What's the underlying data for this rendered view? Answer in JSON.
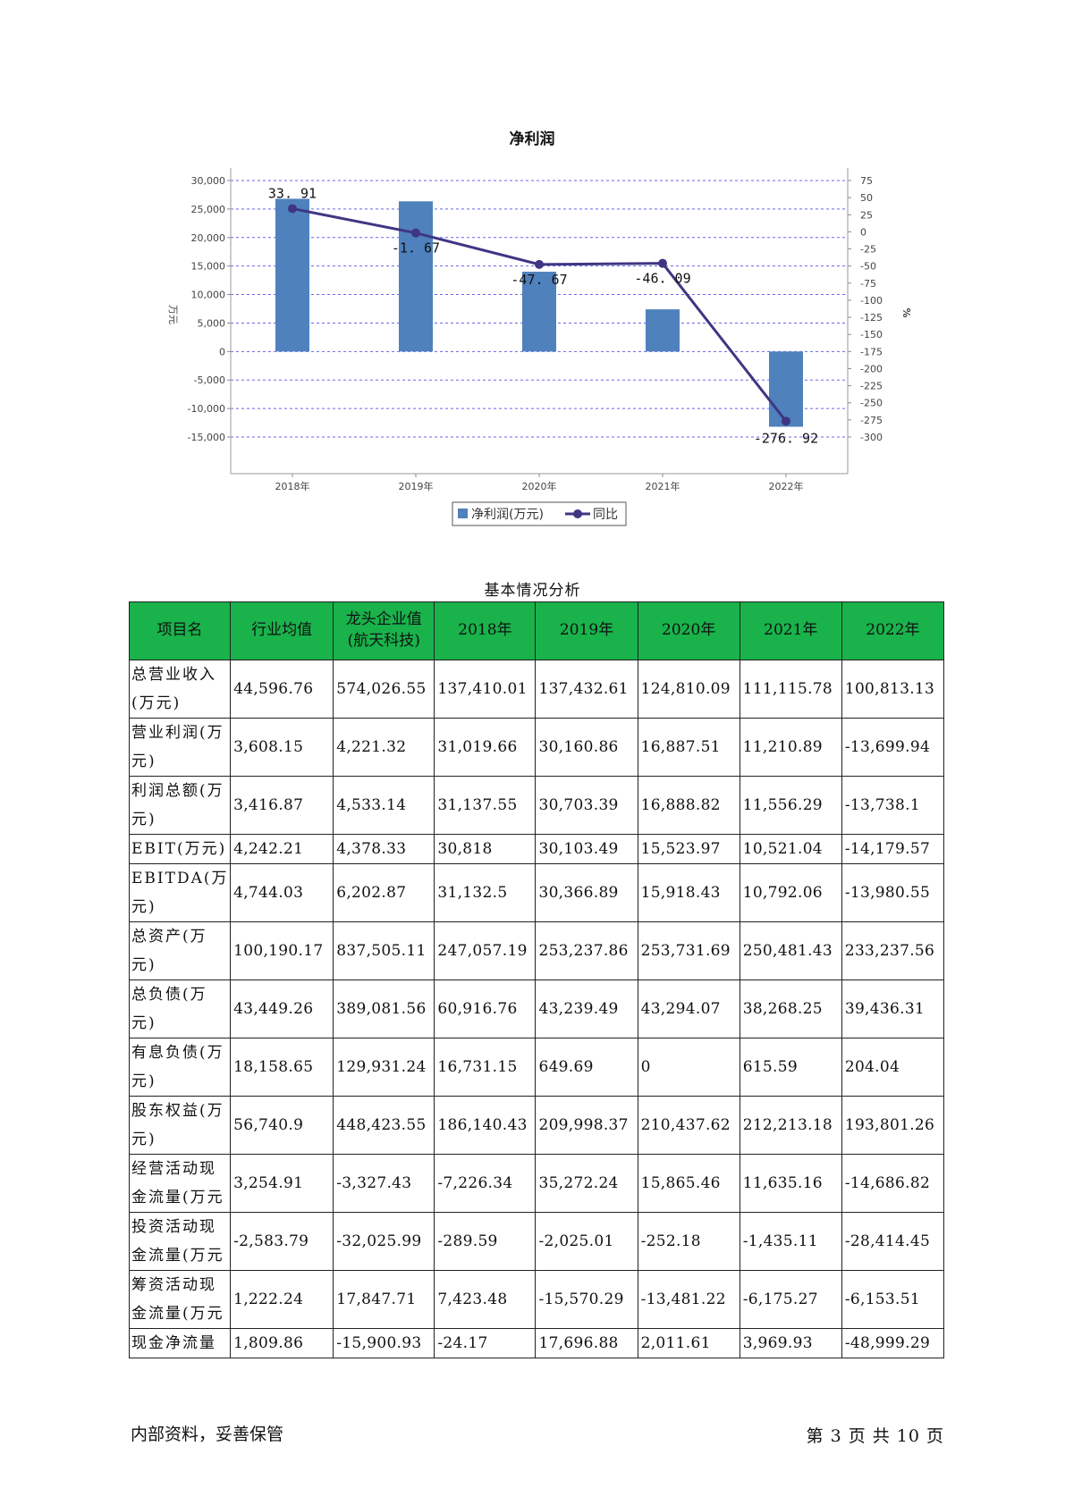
{
  "chart_data": {
    "type": "bar",
    "title": "净利润",
    "categories": [
      "2018年",
      "2019年",
      "2020年",
      "2021年",
      "2022年"
    ],
    "series": [
      {
        "name": "净利润(万元)",
        "type": "bar",
        "axis": "left",
        "values": [
          26800,
          26350,
          14000,
          7400,
          -13200
        ]
      },
      {
        "name": "同比",
        "type": "line",
        "axis": "right",
        "values": [
          33.91,
          -1.67,
          -47.67,
          -46.09,
          -276.92
        ]
      }
    ],
    "ylabel": "万元",
    "ylim": [
      -15000,
      30000
    ],
    "yticks": [
      "30,000",
      "25,000",
      "20,000",
      "15,000",
      "10,000",
      "5,000",
      "0",
      "-5,000",
      "-10,000",
      "-15,000"
    ],
    "ylabel_right": "%",
    "ylim_right": [
      -300,
      75
    ],
    "yticks_right": [
      "75",
      "50",
      "25",
      "0",
      "-25",
      "-50",
      "-75",
      "-100",
      "-125",
      "-150",
      "-175",
      "-200",
      "-225",
      "-250",
      "-275",
      "-300"
    ],
    "data_labels": [
      "33. 91",
      "-1. 67",
      "-47. 67",
      "-46. 09",
      "-276. 92"
    ],
    "legend": "bottom",
    "grid": true,
    "colors": {
      "bar": "#4f81bd",
      "line": "#3f3683",
      "grid": "#6666ee"
    }
  },
  "table": {
    "title": "基本情况分析",
    "header_color": "#19b24b",
    "headers": [
      "项目名",
      "行业均值",
      "龙头企业值(航天科技)",
      "2018年",
      "2019年",
      "2020年",
      "2021年",
      "2022年"
    ],
    "rows": [
      [
        "总营业收入(万元)",
        "44,596.76",
        "574,026.55",
        "137,410.01",
        "137,432.61",
        "124,810.09",
        "111,115.78",
        "100,813.13"
      ],
      [
        "营业利润(万元)",
        "3,608.15",
        "4,221.32",
        "31,019.66",
        "30,160.86",
        "16,887.51",
        "11,210.89",
        "-13,699.94"
      ],
      [
        "利润总额(万元)",
        "3,416.87",
        "4,533.14",
        "31,137.55",
        "30,703.39",
        "16,888.82",
        "11,556.29",
        "-13,738.1"
      ],
      [
        "EBIT(万元)",
        "4,242.21",
        "4,378.33",
        "30,818",
        "30,103.49",
        "15,523.97",
        "10,521.04",
        "-14,179.57"
      ],
      [
        "EBITDA(万元)",
        "4,744.03",
        "6,202.87",
        "31,132.5",
        "30,366.89",
        "15,918.43",
        "10,792.06",
        "-13,980.55"
      ],
      [
        "总资产(万元)",
        "100,190.17",
        "837,505.11",
        "247,057.19",
        "253,237.86",
        "253,731.69",
        "250,481.43",
        "233,237.56"
      ],
      [
        "总负债(万元)",
        "43,449.26",
        "389,081.56",
        "60,916.76",
        "43,239.49",
        "43,294.07",
        "38,268.25",
        "39,436.31"
      ],
      [
        "有息负债(万元)",
        "18,158.65",
        "129,931.24",
        "16,731.15",
        "649.69",
        "0",
        "615.59",
        "204.04"
      ],
      [
        "股东权益(万元)",
        "56,740.9",
        "448,423.55",
        "186,140.43",
        "209,998.37",
        "210,437.62",
        "212,213.18",
        "193,801.26"
      ],
      [
        "经营活动现金流量(万元",
        "3,254.91",
        "-3,327.43",
        "-7,226.34",
        "35,272.24",
        "15,865.46",
        "11,635.16",
        "-14,686.82"
      ],
      [
        "投资活动现金流量(万元",
        "-2,583.79",
        "-32,025.99",
        "-289.59",
        "-2,025.01",
        "-252.18",
        "-1,435.11",
        "-28,414.45"
      ],
      [
        "筹资活动现金流量(万元",
        "1,222.24",
        "17,847.71",
        "7,423.48",
        "-15,570.29",
        "-13,481.22",
        "-6,175.27",
        "-6,153.51"
      ],
      [
        "现金净流量",
        "1,809.86",
        "-15,900.93",
        "-24.17",
        "17,696.88",
        "2,011.61",
        "3,969.93",
        "-48,999.29"
      ]
    ]
  },
  "footer": {
    "left": "内部资料，妥善保管",
    "right": "第 3 页  共 10 页"
  }
}
